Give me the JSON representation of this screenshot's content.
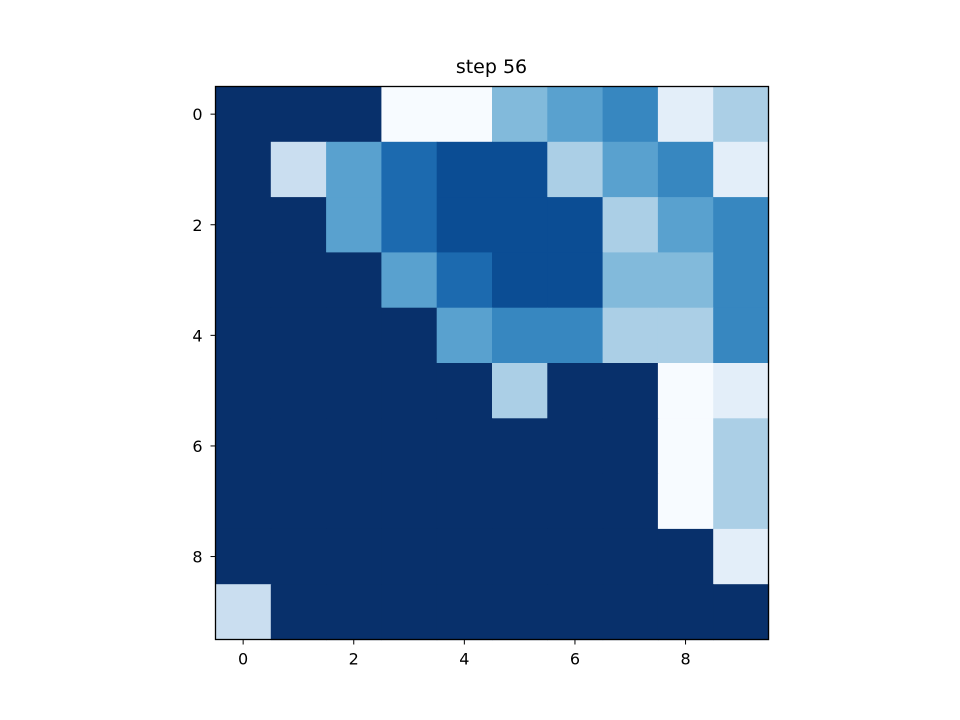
{
  "chart_data": {
    "type": "heatmap",
    "title": "step 56",
    "xlabel": "",
    "ylabel": "",
    "colormap": "Blues",
    "x_ticks": [
      0,
      2,
      4,
      6,
      8
    ],
    "y_ticks": [
      0,
      2,
      4,
      6,
      8
    ],
    "grid": false,
    "values": [
      [
        9,
        9,
        9,
        0,
        0,
        4,
        5,
        6,
        1,
        3
      ],
      [
        9,
        2,
        5,
        7,
        8,
        8,
        3,
        5,
        6,
        1
      ],
      [
        9,
        9,
        5,
        7,
        8,
        8,
        8,
        3,
        5,
        6
      ],
      [
        9,
        9,
        9,
        5,
        7,
        8,
        8,
        4,
        4,
        6
      ],
      [
        9,
        9,
        9,
        9,
        5,
        6,
        6,
        3,
        3,
        6
      ],
      [
        9,
        9,
        9,
        9,
        9,
        3,
        9,
        9,
        0,
        1
      ],
      [
        9,
        9,
        9,
        9,
        9,
        9,
        9,
        9,
        0,
        3
      ],
      [
        9,
        9,
        9,
        9,
        9,
        9,
        9,
        9,
        0,
        3
      ],
      [
        9,
        9,
        9,
        9,
        9,
        9,
        9,
        9,
        9,
        1
      ],
      [
        2,
        9,
        9,
        9,
        9,
        9,
        9,
        9,
        9,
        9
      ]
    ],
    "color_scale": [
      "#f7fbff",
      "#e3eef9",
      "#cadef0",
      "#abcfe6",
      "#82badb",
      "#59a1cf",
      "#3787c0",
      "#1c6aaf",
      "#0b4d94",
      "#08306b"
    ]
  }
}
